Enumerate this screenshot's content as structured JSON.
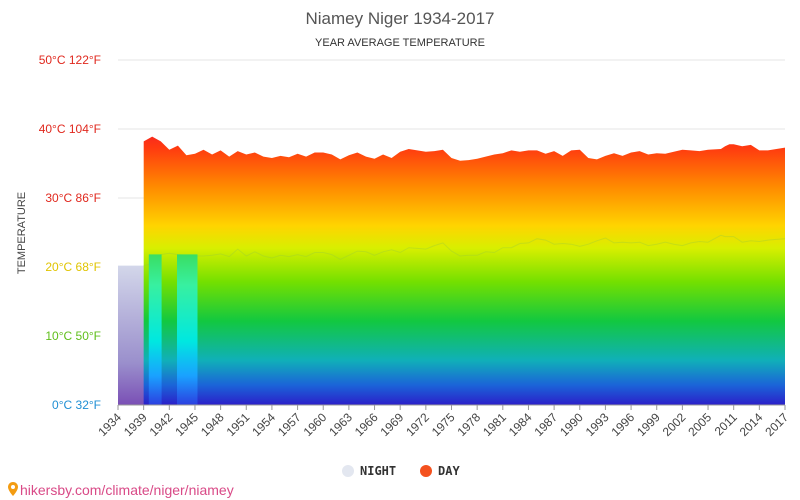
{
  "chart_data": {
    "type": "area",
    "title": "Niamey Niger 1934-2017",
    "subtitle": "YEAR AVERAGE TEMPERATURE",
    "ylabel": "TEMPERATURE",
    "ylim": [
      0,
      50
    ],
    "y_ticks": [
      {
        "value": 0,
        "label": "0°C 32°F",
        "color": "#1f8fd4"
      },
      {
        "value": 10,
        "label": "10°C 50°F",
        "color": "#5fbf1a"
      },
      {
        "value": 20,
        "label": "20°C 68°F",
        "color": "#e0c400"
      },
      {
        "value": 30,
        "label": "30°C 86°F",
        "color": "#e0281e"
      },
      {
        "value": 40,
        "label": "40°C 104°F",
        "color": "#e0281e"
      },
      {
        "value": 50,
        "label": "50°C 122°F",
        "color": "#e0281e"
      }
    ],
    "x_tick_labels": [
      "1934",
      "1939",
      "1942",
      "1945",
      "1948",
      "1951",
      "1954",
      "1957",
      "1960",
      "1963",
      "1966",
      "1969",
      "1972",
      "1975",
      "1978",
      "1981",
      "1984",
      "1987",
      "1990",
      "1993",
      "1996",
      "1999",
      "2002",
      "2005",
      "2011",
      "2014",
      "2017"
    ],
    "series": [
      {
        "name": "NIGHT",
        "color": "#e3e7f0",
        "x": [
          1934,
          1939,
          1940,
          1941,
          1942,
          1943,
          1944,
          1945,
          1946,
          1947,
          1948,
          1949,
          1950,
          1951,
          1952,
          1953,
          1954,
          1955,
          1956,
          1957,
          1958,
          1959,
          1960,
          1961,
          1962,
          1963,
          1964,
          1965,
          1966,
          1967,
          1968,
          1969,
          1970,
          1971,
          1972,
          1973,
          1974,
          1975,
          1976,
          1977,
          1978,
          1979,
          1980,
          1981,
          1982,
          1983,
          1984,
          1985,
          1986,
          1987,
          1988,
          1989,
          1990,
          1991,
          1992,
          1993,
          1994,
          1995,
          1996,
          1997,
          1998,
          1999,
          2000,
          2001,
          2002,
          2003,
          2004,
          2005,
          2008,
          2009,
          2010,
          2011,
          2012,
          2013,
          2014,
          2015,
          2016,
          2017
        ],
        "values": [
          20.2,
          20.2,
          20.5,
          21.8,
          22.0,
          21.8,
          21.7,
          21.6,
          21.6,
          21.7,
          21.9,
          21.5,
          22.6,
          21.6,
          22.2,
          21.6,
          21.3,
          21.7,
          21.5,
          21.8,
          21.5,
          22.1,
          22.1,
          21.8,
          21.1,
          21.7,
          22.3,
          22.2,
          21.7,
          22.2,
          22.5,
          22.1,
          22.8,
          22.7,
          22.6,
          23.1,
          23.5,
          22.3,
          21.6,
          21.7,
          21.7,
          22.2,
          22.1,
          22.8,
          22.8,
          23.4,
          23.5,
          24.1,
          23.9,
          23.3,
          23.4,
          23.3,
          23.0,
          23.3,
          23.8,
          24.2,
          23.5,
          23.6,
          23.5,
          23.6,
          23.1,
          23.3,
          23.6,
          23.3,
          23.1,
          23.5,
          23.7,
          23.6,
          24.6,
          24.4,
          24.4,
          24.4,
          23.6,
          23.8,
          23.7,
          23.9,
          24.0,
          24.1
        ]
      },
      {
        "name": "DAY",
        "color": "#f4511e",
        "x": [
          1939,
          1940,
          1941,
          1942,
          1943,
          1944,
          1945,
          1946,
          1947,
          1948,
          1949,
          1950,
          1951,
          1952,
          1953,
          1954,
          1955,
          1956,
          1957,
          1958,
          1959,
          1960,
          1961,
          1962,
          1963,
          1964,
          1965,
          1966,
          1967,
          1968,
          1969,
          1970,
          1971,
          1972,
          1973,
          1974,
          1975,
          1976,
          1977,
          1978,
          1979,
          1980,
          1981,
          1982,
          1983,
          1984,
          1985,
          1986,
          1987,
          1988,
          1989,
          1990,
          1991,
          1992,
          1993,
          1994,
          1995,
          1996,
          1997,
          1998,
          1999,
          2000,
          2001,
          2002,
          2003,
          2004,
          2005,
          2008,
          2009,
          2010,
          2011,
          2012,
          2013,
          2014,
          2015,
          2016,
          2017
        ],
        "values": [
          38.2,
          38.9,
          38.2,
          37.0,
          37.6,
          36.2,
          36.4,
          37.0,
          36.3,
          36.9,
          36.0,
          36.8,
          36.3,
          36.6,
          36.0,
          35.8,
          36.1,
          35.9,
          36.4,
          36.0,
          36.6,
          36.6,
          36.3,
          35.6,
          36.2,
          36.6,
          36.0,
          35.7,
          36.3,
          35.8,
          36.7,
          37.1,
          36.9,
          36.7,
          36.8,
          37.0,
          35.8,
          35.4,
          35.5,
          35.7,
          36.0,
          36.3,
          36.5,
          36.9,
          36.7,
          36.9,
          36.9,
          36.4,
          36.8,
          36.1,
          36.9,
          37.0,
          35.8,
          35.6,
          36.1,
          36.5,
          36.1,
          36.6,
          36.8,
          36.3,
          36.5,
          36.4,
          36.7,
          37.0,
          36.9,
          36.8,
          37.0,
          37.1,
          37.5,
          37.8,
          37.8,
          37.5,
          37.7,
          36.9,
          36.9,
          37.1,
          37.3
        ]
      }
    ],
    "gaps": [
      [
        1939.6,
        1941.1
      ],
      [
        1942.9,
        1945.3
      ]
    ],
    "grid": true,
    "legend": "bottom-center"
  },
  "credit": "hikersby.com/climate/niger/niamey"
}
